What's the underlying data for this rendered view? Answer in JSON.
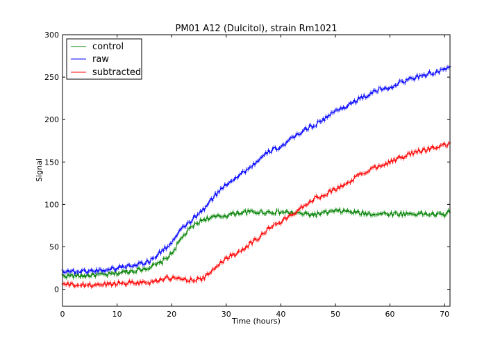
{
  "chart_data": {
    "type": "line",
    "title": "PM01 A12 (Dulcitol), strain Rm1021",
    "xlabel": "Time (hours)",
    "ylabel": "Signal",
    "xlim": [
      0,
      71
    ],
    "ylim": [
      -20,
      300
    ],
    "xticks": [
      0,
      10,
      20,
      30,
      40,
      50,
      60,
      70
    ],
    "yticks": [
      0,
      50,
      100,
      150,
      200,
      250,
      300
    ],
    "grid": false,
    "legend_position": "top-left",
    "colors": {
      "control": "#008000",
      "raw": "#0000ff",
      "subtracted": "#ff0000"
    },
    "x": [
      0,
      2,
      4,
      6,
      8,
      10,
      12,
      14,
      16,
      18,
      20,
      22,
      24,
      26,
      28,
      30,
      32,
      34,
      36,
      38,
      40,
      42,
      44,
      46,
      48,
      50,
      52,
      54,
      56,
      58,
      60,
      62,
      64,
      66,
      68,
      70,
      71
    ],
    "series": [
      {
        "name": "control",
        "values": [
          16,
          16,
          16,
          17,
          17,
          19,
          21,
          23,
          26,
          31,
          42,
          62,
          75,
          83,
          85,
          87,
          90,
          91,
          91,
          91,
          91,
          90,
          89,
          88,
          90,
          92,
          92,
          90,
          89,
          89,
          89,
          89,
          89,
          89,
          88,
          88,
          92
        ]
      },
      {
        "name": "raw",
        "values": [
          22,
          21,
          21,
          22,
          23,
          25,
          28,
          30,
          33,
          44,
          55,
          72,
          83,
          95,
          111,
          124,
          133,
          142,
          152,
          163,
          168,
          177,
          187,
          193,
          201,
          210,
          216,
          223,
          229,
          235,
          238,
          244,
          248,
          253,
          255,
          258,
          262
        ]
      },
      {
        "name": "subtracted",
        "values": [
          6,
          5,
          5,
          5,
          6,
          7,
          8,
          8,
          8,
          12,
          13,
          12,
          11,
          13,
          26,
          37,
          43,
          52,
          61,
          73,
          79,
          88,
          98,
          106,
          112,
          118,
          124,
          133,
          140,
          146,
          150,
          155,
          160,
          164,
          167,
          170,
          170
        ]
      }
    ]
  }
}
